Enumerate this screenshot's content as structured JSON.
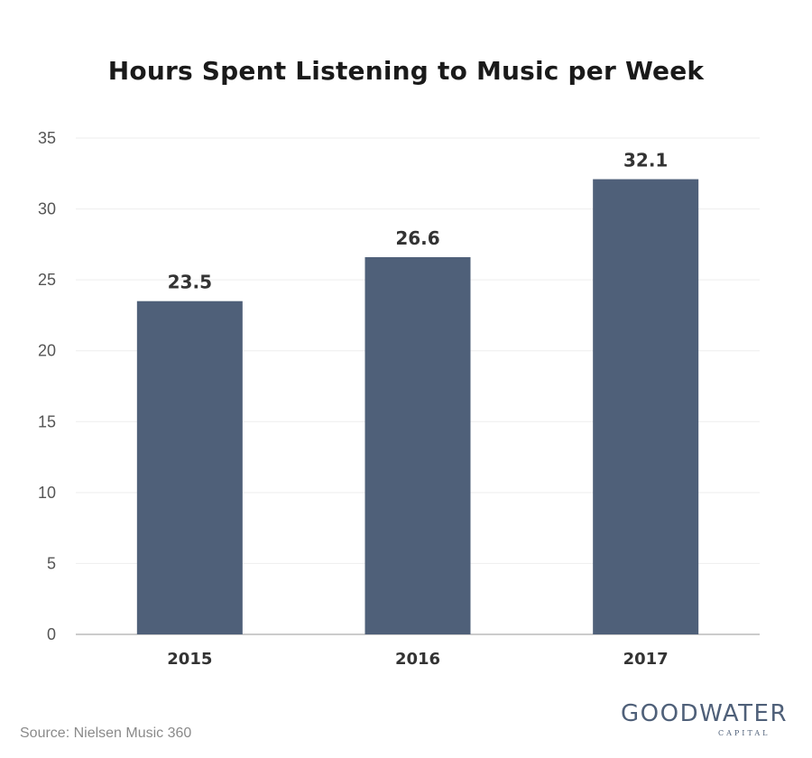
{
  "chart_data": {
    "type": "bar",
    "title": "Hours Spent Listening to Music per Week",
    "categories": [
      "2015",
      "2016",
      "2017"
    ],
    "values": [
      23.5,
      26.6,
      32.1
    ],
    "value_labels": [
      "23.5",
      "26.6",
      "32.1"
    ],
    "ylim": [
      0,
      35
    ],
    "yticks": [
      0,
      5,
      10,
      15,
      20,
      25,
      30,
      35
    ],
    "xlabel": "",
    "ylabel": "",
    "grid": true,
    "bar_color": "#4f6079"
  },
  "footer": {
    "source": "Source: Nielsen Music 360",
    "logo_main": "GOODWATER",
    "logo_sub": "CAPITAL"
  },
  "colors": {
    "bar": "#4f6079",
    "grid": "#eeeeee",
    "axis": "#bbbbbb",
    "logo": "#4f6079"
  }
}
